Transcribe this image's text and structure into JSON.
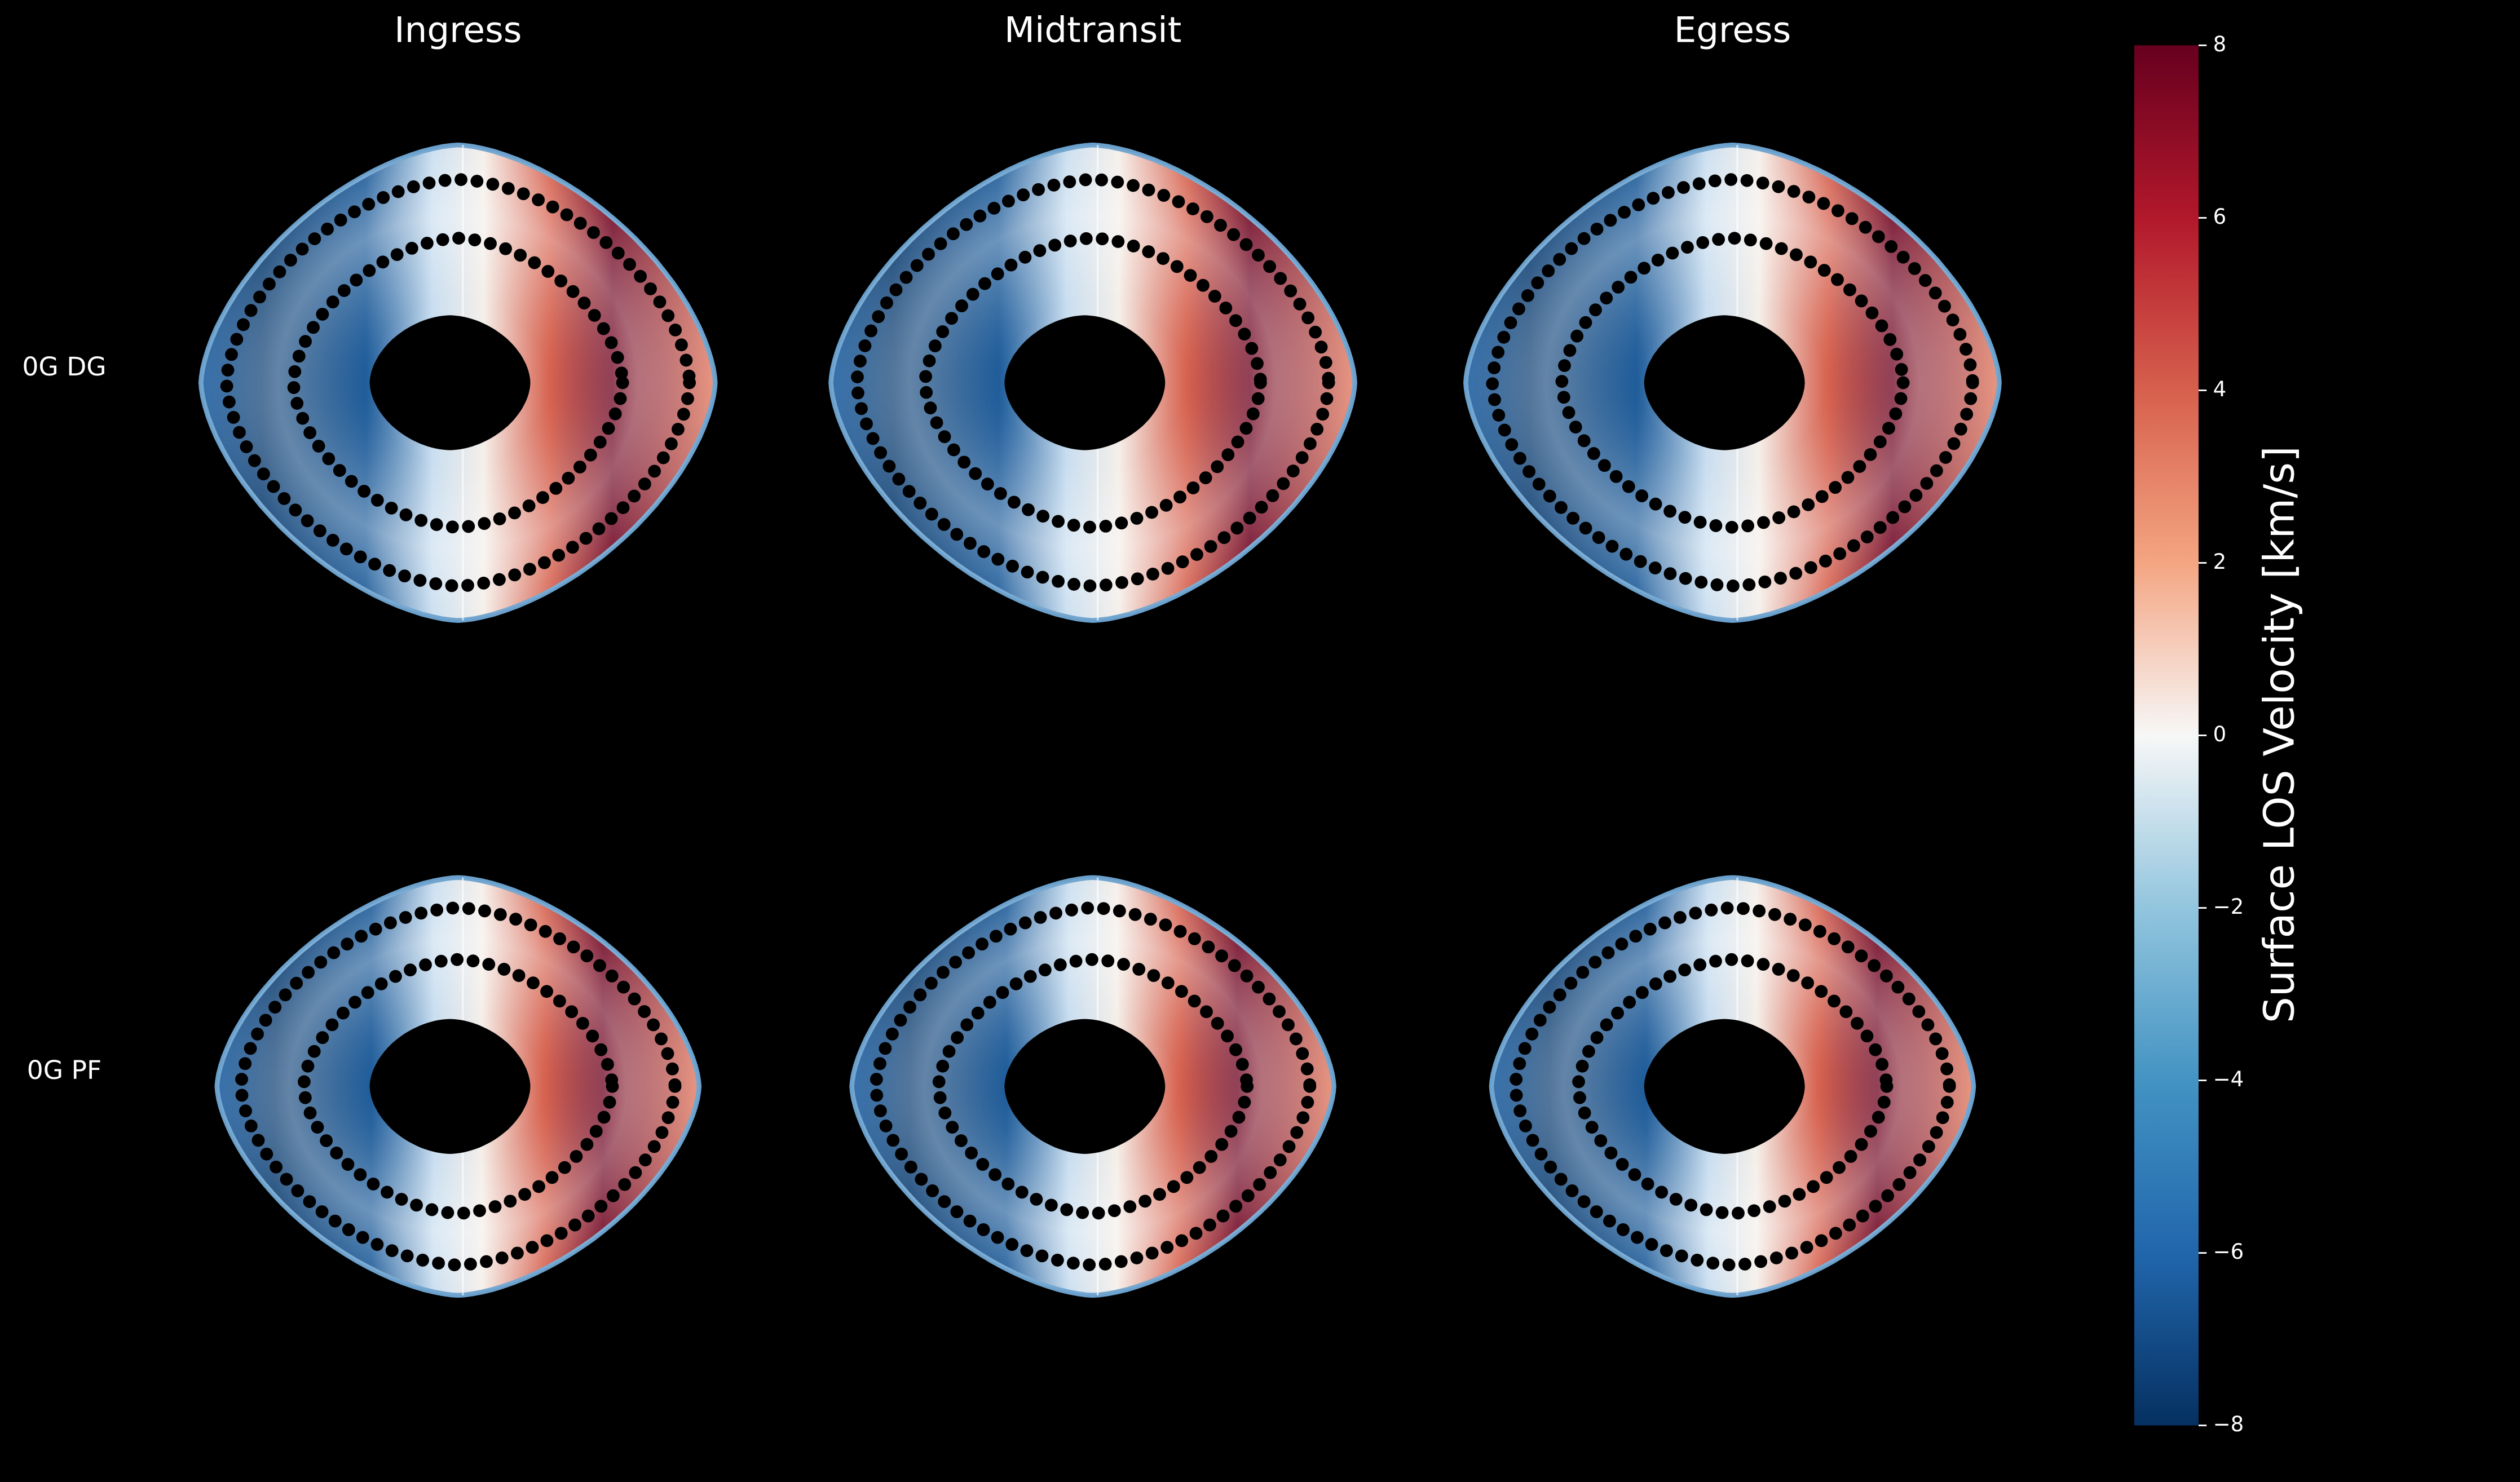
{
  "chart_data": {
    "type": "colormap-grid",
    "columns": [
      "Ingress",
      "Midtransit",
      "Egress"
    ],
    "rows": [
      "0G DG",
      "0G PF"
    ],
    "colorbar": {
      "label": "Surface LOS Velocity [km/s]",
      "ylim": [
        -8,
        8
      ],
      "yticks": [
        {
          "value": -8,
          "label": "−8"
        },
        {
          "value": -6,
          "label": "−6"
        },
        {
          "value": -4,
          "label": "−4"
        },
        {
          "value": -2,
          "label": "−2"
        },
        0,
        2,
        4,
        6,
        8
      ]
    }
  }
}
